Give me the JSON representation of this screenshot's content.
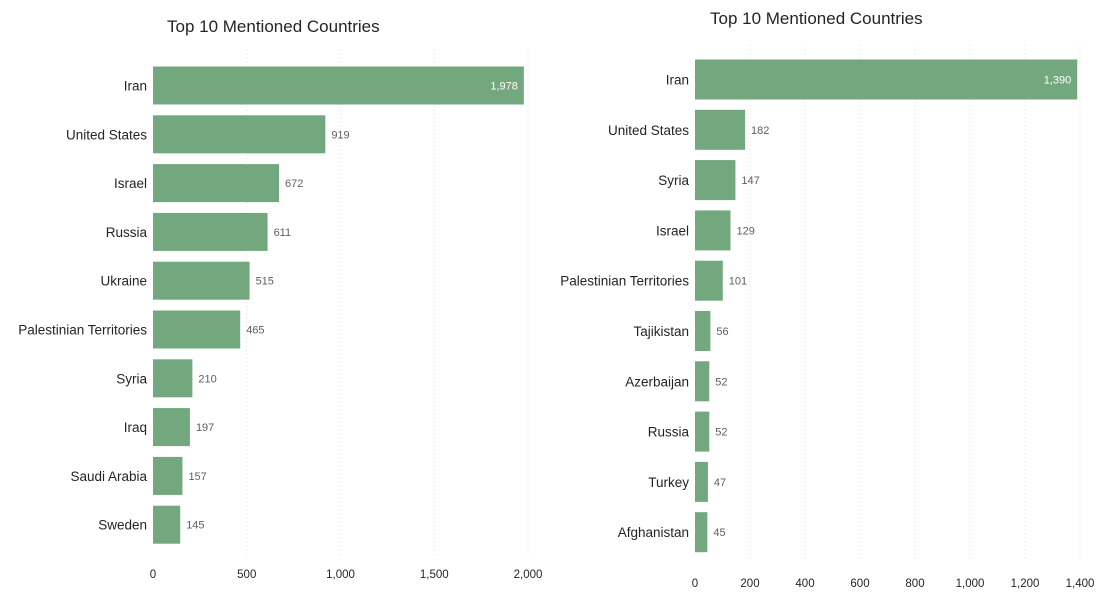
{
  "colors": {
    "bar": "#73a87e",
    "text": "#252423",
    "data_label": "#605e5c",
    "data_label_inside": "#ffffff",
    "grid": "#e1dfdd"
  },
  "chart_data": [
    {
      "type": "bar",
      "orientation": "horizontal",
      "title": "Top 10 Mentioned Countries",
      "categories": [
        "Iran",
        "United States",
        "Israel",
        "Russia",
        "Ukraine",
        "Palestinian Territories",
        "Syria",
        "Iraq",
        "Saudi Arabia",
        "Sweden"
      ],
      "values": [
        1978,
        919,
        672,
        611,
        515,
        465,
        210,
        197,
        157,
        145
      ],
      "value_labels": [
        "1,978",
        "919",
        "672",
        "611",
        "515",
        "465",
        "210",
        "197",
        "157",
        "145"
      ],
      "xlim": [
        0,
        2000
      ],
      "xticks": [
        0,
        500,
        1000,
        1500,
        2000
      ],
      "xtick_labels": [
        "0",
        "500",
        "1,000",
        "1,500",
        "2,000"
      ],
      "grid": true,
      "xlabel": "",
      "ylabel": ""
    },
    {
      "type": "bar",
      "orientation": "horizontal",
      "title": "Top 10 Mentioned Countries",
      "categories": [
        "Iran",
        "United States",
        "Syria",
        "Israel",
        "Palestinian Territories",
        "Tajikistan",
        "Azerbaijan",
        "Russia",
        "Turkey",
        "Afghanistan"
      ],
      "values": [
        1390,
        182,
        147,
        129,
        101,
        56,
        52,
        52,
        47,
        45
      ],
      "value_labels": [
        "1,390",
        "182",
        "147",
        "129",
        "101",
        "56",
        "52",
        "52",
        "47",
        "45"
      ],
      "xlim": [
        0,
        1400
      ],
      "xticks": [
        0,
        200,
        400,
        600,
        800,
        1000,
        1200,
        1400
      ],
      "xtick_labels": [
        "0",
        "200",
        "400",
        "600",
        "800",
        "1,000",
        "1,200",
        "1,400"
      ],
      "grid": true,
      "xlabel": "",
      "ylabel": ""
    }
  ]
}
